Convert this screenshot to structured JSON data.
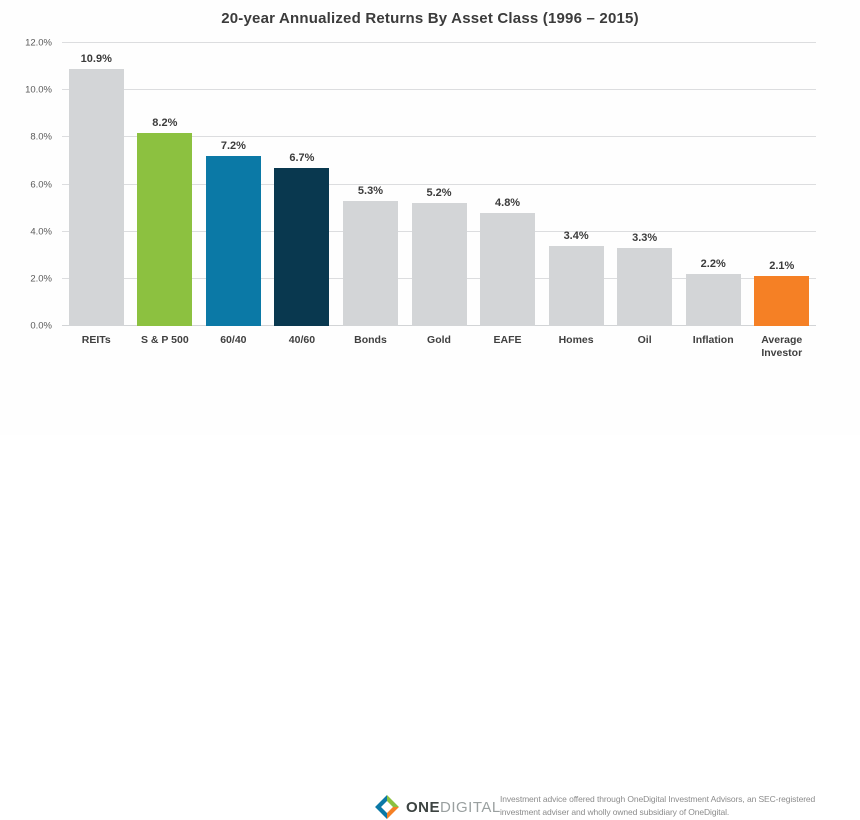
{
  "title": "20-year Annualized Returns By Asset Class (1996 – 2015)",
  "chart_data": {
    "type": "bar",
    "title": "20-year Annualized Returns By Asset Class (1996 – 2015)",
    "categories": [
      "REITs",
      "S & P 500",
      "60/40",
      "40/60",
      "Bonds",
      "Gold",
      "EAFE",
      "Homes",
      "Oil",
      "Inflation",
      "Average Investor"
    ],
    "values": [
      10.9,
      8.2,
      7.2,
      6.7,
      5.3,
      5.2,
      4.8,
      3.4,
      3.3,
      2.2,
      2.1
    ],
    "value_labels": [
      "10.9%",
      "8.2%",
      "7.2%",
      "6.7%",
      "5.3%",
      "5.2%",
      "4.8%",
      "3.4%",
      "3.3%",
      "2.2%",
      "2.1%"
    ],
    "bar_colors": [
      "#d3d5d7",
      "#8cc140",
      "#0b79a6",
      "#09384f",
      "#d3d5d7",
      "#d3d5d7",
      "#d3d5d7",
      "#d3d5d7",
      "#d3d5d7",
      "#d3d5d7",
      "#f58025"
    ],
    "xlabel": "",
    "ylabel": "",
    "ylim": [
      0,
      12
    ],
    "yticks": [
      0,
      2,
      4,
      6,
      8,
      10,
      12
    ],
    "ytick_labels": [
      "0.0%",
      "2.0%",
      "4.0%",
      "6.0%",
      "8.0%",
      "10.0%",
      "12.0%"
    ],
    "grid": "horizontal",
    "legend": "none"
  },
  "colors": {
    "bar_gray": "#d3d5d7",
    "bar_green": "#8cc140",
    "bar_teal": "#0b79a6",
    "bar_navy": "#09384f",
    "bar_orange": "#f58025",
    "gridline": "#dcdddf",
    "text_dark": "#3b3b3b",
    "text_axis": "#595959"
  },
  "footer": {
    "logo": {
      "icon": "onedigital-diamond-icon",
      "text_bold": "ONE",
      "text_light": "DIGITAL"
    },
    "disclaimer": "Investment advice offered through OneDigital Investment Advisors, an SEC-registered investment adviser and wholly owned subsidiary of OneDigital."
  }
}
